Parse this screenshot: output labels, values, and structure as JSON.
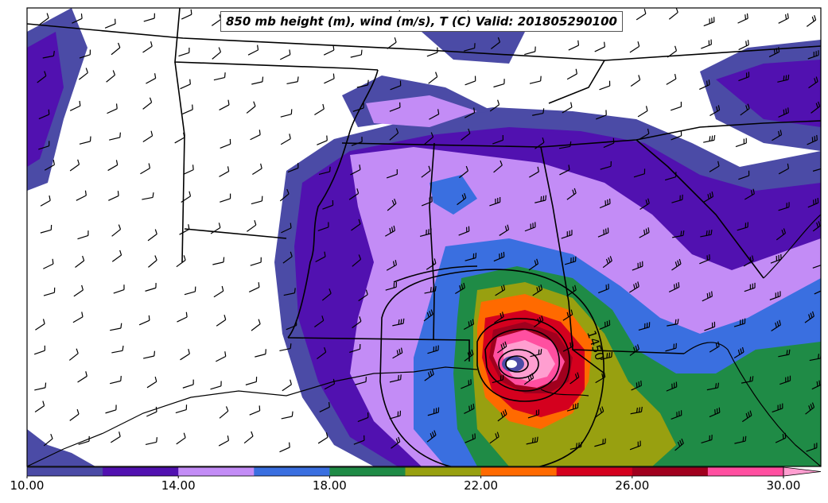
{
  "map": {
    "title": "850 mb height (m), wind (m/s), T (C) Valid: 201805290100",
    "contour_label": "1450",
    "layers": [
      "temperature-fill",
      "height-contours",
      "wind-barbs",
      "state-borders",
      "coastline"
    ]
  },
  "colorbar": {
    "min": 10,
    "max": 30,
    "step": 2,
    "extend": "max",
    "tick_labels": [
      "10.00",
      "14.00",
      "18.00",
      "22.00",
      "26.00",
      "30.00"
    ],
    "colors": [
      "#4b4ba6",
      "#5111b0",
      "#c38cf6",
      "#3a6fe0",
      "#1f8b46",
      "#98a010",
      "#ff6a00",
      "#d4001e",
      "#a0001e",
      "#ff4fa0",
      "#ff9ed0"
    ]
  }
}
